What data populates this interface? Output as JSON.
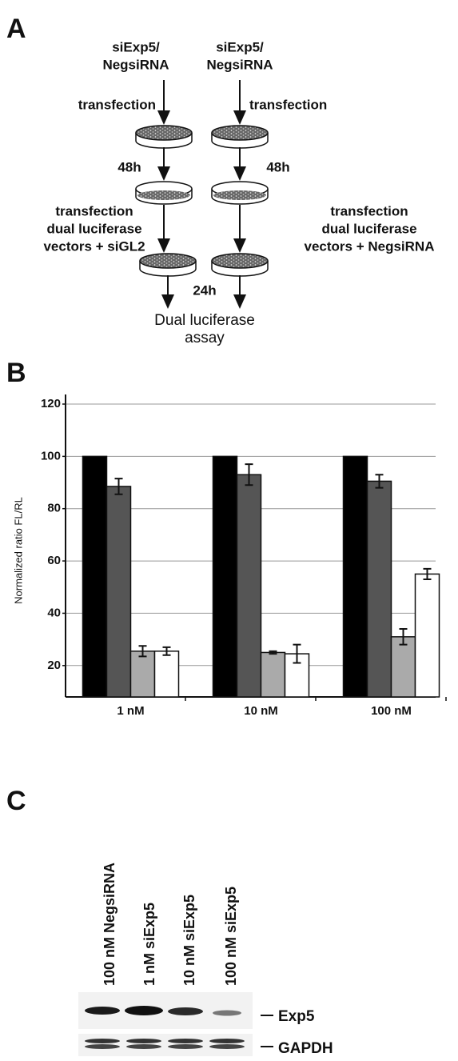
{
  "panel_a": {
    "label": "A",
    "left_reagent": [
      "siExp5/",
      "NegsiRNA"
    ],
    "right_reagent": [
      "siExp5/",
      "NegsiRNA"
    ],
    "left_step1": "transfection",
    "right_step1": "transfection",
    "left_delay": "48h",
    "right_delay": "48h",
    "left_step2": [
      "transfection",
      "dual luciferase",
      "vectors + siGL2"
    ],
    "right_step2": [
      "transfection",
      "dual luciferase",
      "vectors + NegsiRNA"
    ],
    "final_delay": "24h",
    "readout": [
      "Dual luciferase",
      "assay"
    ]
  },
  "panel_b": {
    "label": "B"
  },
  "chart_data": {
    "type": "bar",
    "y_label": "Normalized ratio FL/RL",
    "categories": [
      "1 nM",
      "10 nM",
      "100 nM"
    ],
    "series": [
      {
        "color": "#000000",
        "values": [
          100,
          100,
          100
        ]
      },
      {
        "color": "#555555",
        "values": [
          88.5,
          93,
          90.5
        ],
        "errors": [
          3,
          4,
          2.5
        ]
      },
      {
        "color": "#aaaaaa",
        "values": [
          25.5,
          25,
          31
        ],
        "errors": [
          2,
          0.5,
          3
        ]
      },
      {
        "color": "#ffffff",
        "values": [
          25.5,
          24.5,
          55
        ],
        "errors": [
          1.5,
          3.5,
          2
        ]
      }
    ],
    "ylim": [
      8,
      120
    ],
    "yticks": [
      20,
      40,
      60,
      80,
      100,
      120
    ],
    "grid": true
  },
  "panel_c": {
    "label": "C",
    "lanes": [
      "100 nM NegsiRNA",
      "1 nM siExp5",
      "10 nM siExp5",
      "100 nM siExp5"
    ],
    "bands": [
      "Exp5",
      "GAPDH"
    ]
  }
}
